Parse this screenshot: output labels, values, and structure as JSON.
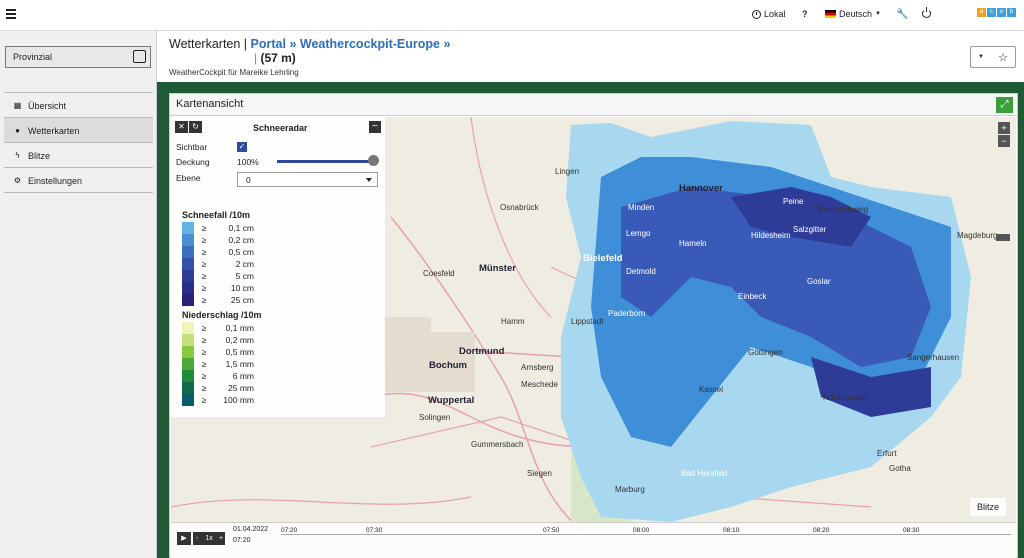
{
  "topbar": {
    "local_label": "Lokal",
    "help_label": "?",
    "lang_label": "Deutsch"
  },
  "sidebar": {
    "select_value": "Provinzial",
    "items": [
      {
        "label": "Übersicht",
        "icon": "grid-icon"
      },
      {
        "label": "Wetterkarten",
        "icon": "globe-icon"
      },
      {
        "label": "Blitze",
        "icon": "bolt-icon"
      },
      {
        "label": "Einstellungen",
        "icon": "gears-icon"
      }
    ]
  },
  "header": {
    "title_prefix": "Wetterkarten |",
    "link_portal": "Portal",
    "link_sep1": "»",
    "link_weather": "Weathercockpit-Europe",
    "link_sep2": "»",
    "altitude": "(57 m)",
    "subtitle": "WeatherCockpit für Mareike Lehrling"
  },
  "panel": {
    "title": "Kartenansicht"
  },
  "control": {
    "title": "Schneeradar",
    "visible_label": "Sichtbar",
    "coverage_label": "Deckung",
    "coverage_value": "100%",
    "coverage_fraction": 1.0,
    "layer_label": "Ebene",
    "layer_value": "0"
  },
  "legend_snow": {
    "title": "Schneefall /10m",
    "items": [
      {
        "sym": "≥",
        "value": "0,1 cm",
        "color": "#64b4e6"
      },
      {
        "sym": "≥",
        "value": "0,2 cm",
        "color": "#4a8ed4"
      },
      {
        "sym": "≥",
        "value": "0,5 cm",
        "color": "#3e6cc0"
      },
      {
        "sym": "≥",
        "value": "2 cm",
        "color": "#3450a8"
      },
      {
        "sym": "≥",
        "value": "5 cm",
        "color": "#2e3c98"
      },
      {
        "sym": "≥",
        "value": "10 cm",
        "color": "#2a2e88"
      },
      {
        "sym": "≥",
        "value": "25 cm",
        "color": "#262078"
      }
    ]
  },
  "legend_rain": {
    "title": "Niederschlag /10m",
    "items": [
      {
        "sym": "≥",
        "value": "0,1 mm",
        "color": "#eef5b8"
      },
      {
        "sym": "≥",
        "value": "0,2 mm",
        "color": "#c4e07a"
      },
      {
        "sym": "≥",
        "value": "0,5 mm",
        "color": "#8cc840"
      },
      {
        "sym": "≥",
        "value": "1,5 mm",
        "color": "#4ca838"
      },
      {
        "sym": "≥",
        "value": "6 mm",
        "color": "#1e8a3a"
      },
      {
        "sym": "≥",
        "value": "25 mm",
        "color": "#106a4a"
      },
      {
        "sym": "≥",
        "value": "100 mm",
        "color": "#0a5a6a"
      }
    ]
  },
  "cities": [
    {
      "name": "Hannover",
      "big": true
    },
    {
      "name": "Bielefeld",
      "big": true
    },
    {
      "name": "Münster",
      "big": false
    },
    {
      "name": "Dortmund",
      "big": true
    },
    {
      "name": "Bochum",
      "big": true
    },
    {
      "name": "Wuppertal",
      "big": true
    },
    {
      "name": "Osnabrück",
      "big": false
    },
    {
      "name": "Braunschweig",
      "big": false
    },
    {
      "name": "Magdeburg",
      "big": false
    },
    {
      "name": "Kassel",
      "big": false
    },
    {
      "name": "Göttingen",
      "big": false
    },
    {
      "name": "Paderborn",
      "big": false
    },
    {
      "name": "Hildesheim",
      "big": false
    },
    {
      "name": "Salzgitter",
      "big": false
    },
    {
      "name": "Hamm",
      "big": false
    },
    {
      "name": "Siegen",
      "big": false
    },
    {
      "name": "Solingen",
      "big": false
    },
    {
      "name": "Erfurt",
      "big": false
    },
    {
      "name": "Bad Hersfeld",
      "big": false
    },
    {
      "name": "Marburg",
      "big": false
    },
    {
      "name": "Coesfeld",
      "big": false
    },
    {
      "name": "Lippstadt",
      "big": false
    },
    {
      "name": "Einbeck",
      "big": false
    },
    {
      "name": "Detmold",
      "big": false
    },
    {
      "name": "Hameln",
      "big": false
    },
    {
      "name": "Minden",
      "big": false
    },
    {
      "name": "Arnsberg",
      "big": false
    },
    {
      "name": "Meschede",
      "big": false
    },
    {
      "name": "Gummersbach",
      "big": false
    },
    {
      "name": "Nordhausen",
      "big": false
    },
    {
      "name": "Sangerhausen",
      "big": false
    },
    {
      "name": "Goslar",
      "big": false
    },
    {
      "name": "Peine",
      "big": false
    },
    {
      "name": "Lemgo",
      "big": false
    },
    {
      "name": "Lingen",
      "big": false
    },
    {
      "name": "Gotha",
      "big": false
    }
  ],
  "map_controls": {
    "zoom_in": "+",
    "zoom_out": "−",
    "blitze": "Blitze"
  },
  "timeline": {
    "date": "01.04.2022",
    "time": "07:20",
    "speed": "1x",
    "ticks": [
      "07:20",
      "07:30",
      "07:50",
      "08:00",
      "08:10",
      "08:20",
      "08:30"
    ]
  },
  "colors": {
    "accent": "#2a6fb8",
    "frame": "#1f5a35",
    "fullscreen": "#3a9d3a"
  }
}
